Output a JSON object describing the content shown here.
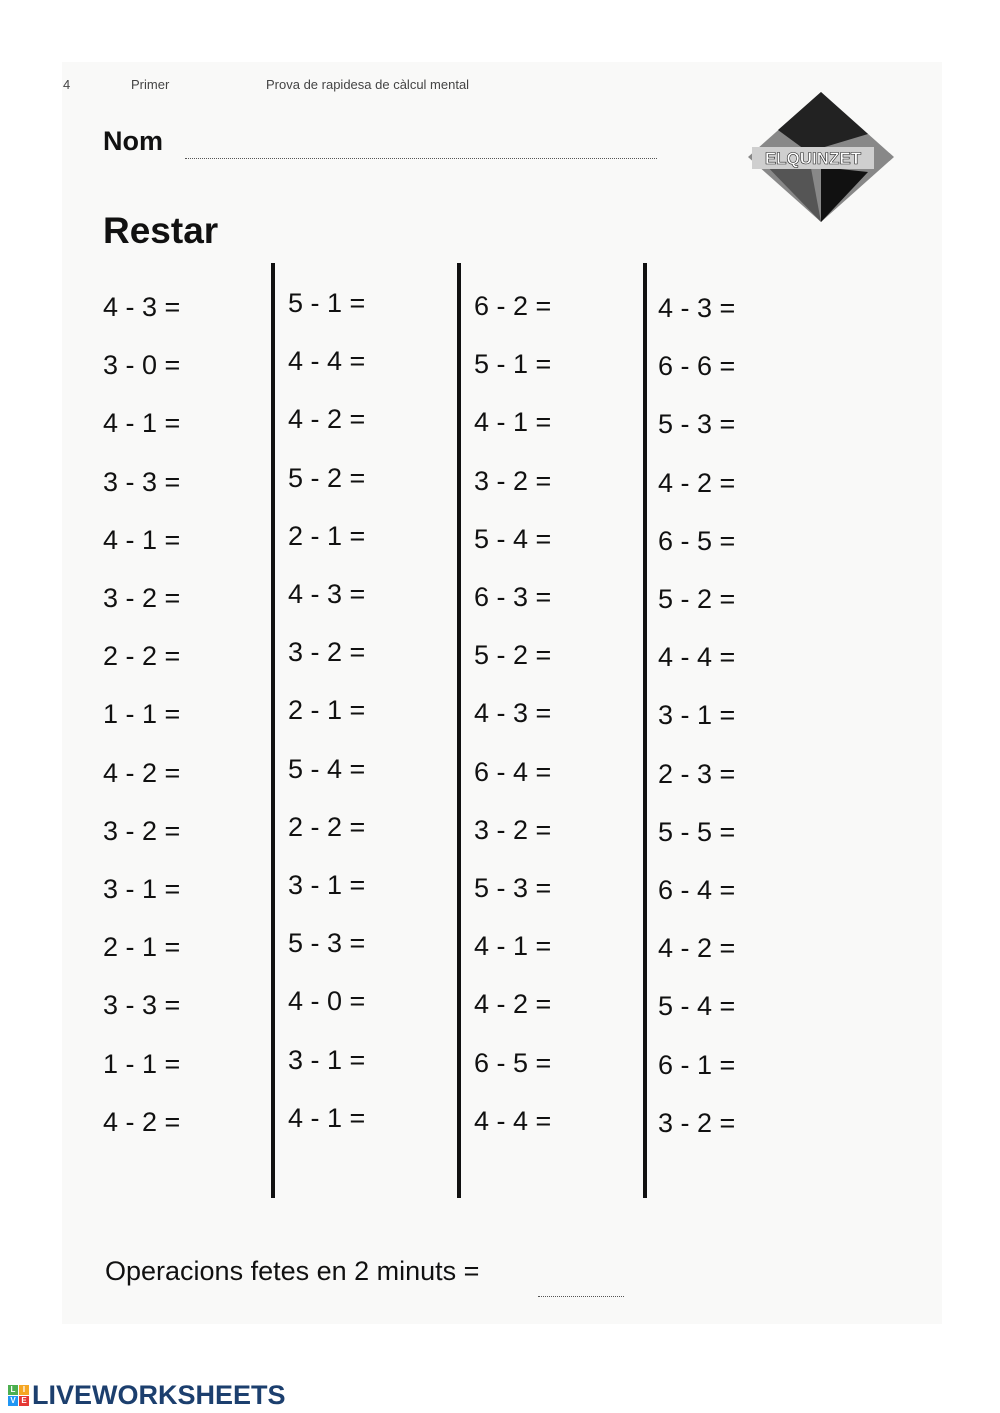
{
  "header": {
    "page_number": "4",
    "level": "Primer",
    "subtitle": "Prova de rapidesa de càlcul mental"
  },
  "name_label": "Nom",
  "title": "Restar",
  "logo_text": "ELQUINZET",
  "columns": [
    [
      "4 - 3 =",
      "3 - 0 =",
      "4 - 1 =",
      "3 - 3 =",
      "4 - 1 =",
      "3 - 2 =",
      "2 - 2 =",
      "1 - 1 =",
      "4 - 2 =",
      "3 - 2 =",
      "3 - 1 =",
      "2 - 1 =",
      "3 - 3 =",
      "1 - 1 =",
      "4 - 2 ="
    ],
    [
      "5 - 1 =",
      "4 - 4 =",
      "4 - 2 =",
      "5 - 2 =",
      "2 - 1 =",
      "4 - 3 =",
      "3 - 2 =",
      "2 - 1 =",
      "5 - 4 =",
      "2 - 2 =",
      "3 - 1 =",
      "5 - 3 =",
      "4 - 0 =",
      "3 - 1 =",
      "4 - 1 ="
    ],
    [
      "6 - 2 =",
      "5 - 1 =",
      "4 - 1 =",
      "3 - 2 =",
      "5 - 4 =",
      "6 - 3 =",
      "5 - 2 =",
      "4 - 3 =",
      "6 - 4 =",
      "3 - 2 =",
      "5 - 3 =",
      "4 - 1 =",
      "4 - 2 =",
      "6 - 5 =",
      "4 - 4 ="
    ],
    [
      "4 - 3 =",
      "6 - 6 =",
      "5 - 3 =",
      "4 - 2 =",
      "6 - 5 =",
      "5 - 2 =",
      "4 - 4 =",
      "3 - 1 =",
      "2 - 3 =",
      "5 - 5 =",
      "6 - 4 =",
      "4 - 2 =",
      "5 - 4 =",
      "6 - 1 =",
      "3 - 2 ="
    ]
  ],
  "footer": "Operacions fetes en 2 minuts =",
  "brand": {
    "text": "LIVEWORKSHEETS",
    "color": "#1c3f6e",
    "icon_letters": [
      "L",
      "I",
      "V",
      "E"
    ],
    "icon_colors": [
      "#4caf50",
      "#f5a623",
      "#2196f3",
      "#e53935"
    ]
  }
}
